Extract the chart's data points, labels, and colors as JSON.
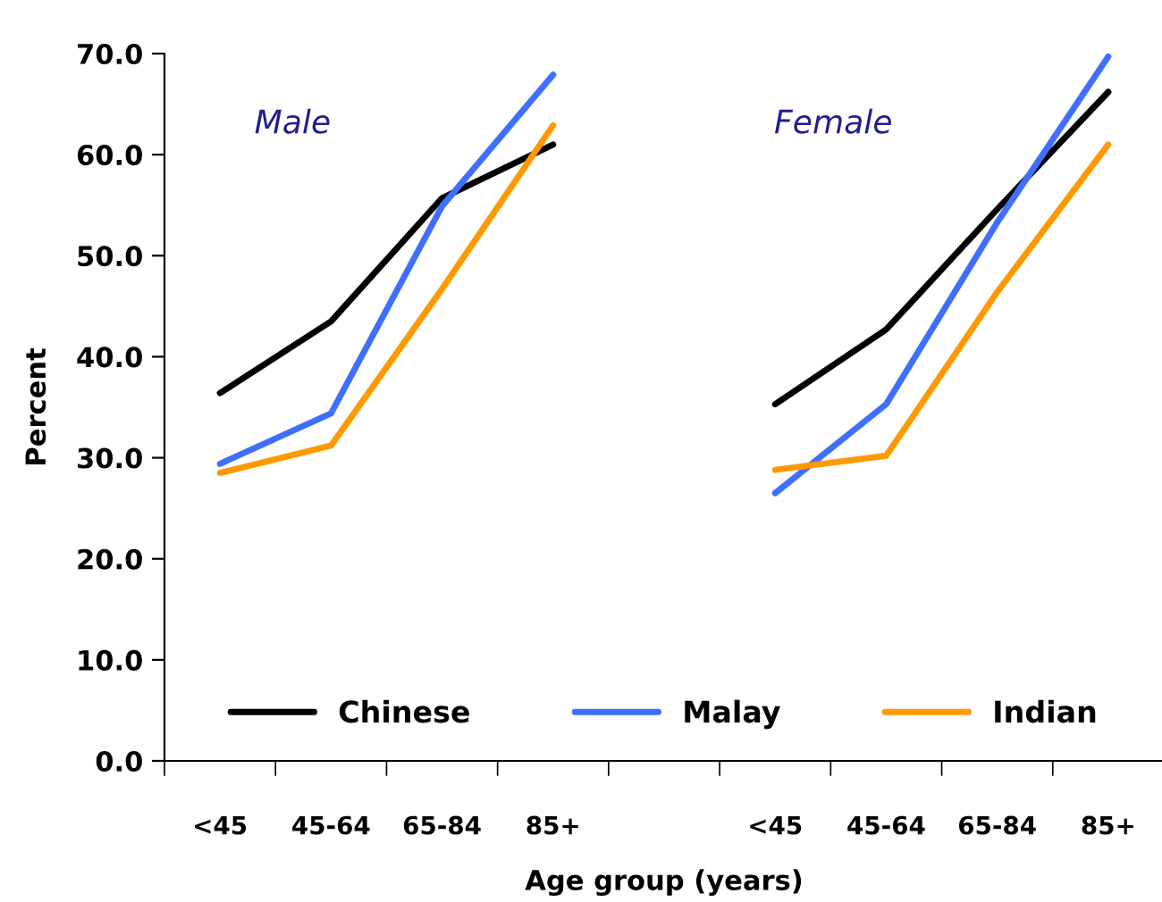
{
  "chart_data": {
    "type": "line",
    "xlabel": "Age group (years)",
    "ylabel": "Percent",
    "categories": [
      "<45",
      "45-64",
      "65-84",
      "85+",
      null,
      "<45",
      "45-64",
      "65-84",
      "85+"
    ],
    "series": [
      {
        "name": "Chinese",
        "color": "#000000",
        "values": [
          36.4,
          43.5,
          55.7,
          61.0,
          null,
          35.3,
          42.7,
          54.6,
          66.2
        ]
      },
      {
        "name": "Malay",
        "color": "#3f6fff",
        "values": [
          29.4,
          34.4,
          54.9,
          67.9,
          null,
          26.5,
          35.3,
          53.3,
          69.7
        ]
      },
      {
        "name": "Indian",
        "color": "#ff9900",
        "values": [
          28.5,
          31.2,
          46.7,
          62.9,
          null,
          28.8,
          30.2,
          46.4,
          61.0
        ]
      }
    ],
    "annotations": [
      "Male",
      "Female"
    ],
    "ylim": [
      0,
      70
    ],
    "yticks": [
      {
        "value": 0,
        "label": "0.0"
      },
      {
        "value": 10,
        "label": "10.0"
      },
      {
        "value": 20,
        "label": "20.0"
      },
      {
        "value": 30,
        "label": "30.0"
      },
      {
        "value": 40,
        "label": "40.0"
      },
      {
        "value": 50,
        "label": "50.0"
      },
      {
        "value": 60,
        "label": "60.0"
      },
      {
        "value": 70,
        "label": "70.0"
      }
    ],
    "grid": false,
    "legend": "bottom",
    "marker": "none",
    "line_style": "solid"
  }
}
